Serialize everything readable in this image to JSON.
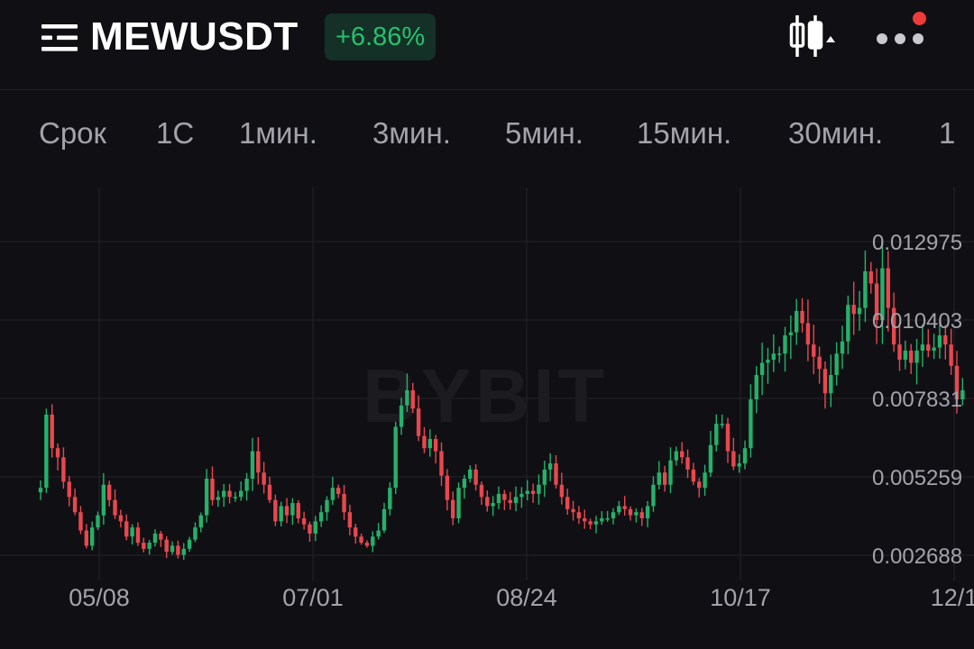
{
  "header": {
    "symbol": "MEWUSDT",
    "change": "+6.86%",
    "change_color": "#25c26e",
    "menu_icon": "menu-list-icon",
    "chart_type_icon": "candlestick-icon",
    "more_icon": "more-dots-icon",
    "has_notification": true
  },
  "tabs": [
    {
      "label": "Срок"
    },
    {
      "label": "1С"
    },
    {
      "label": "1мин."
    },
    {
      "label": "3мин."
    },
    {
      "label": "5мин."
    },
    {
      "label": "15мин."
    },
    {
      "label": "30мин."
    },
    {
      "label": "1"
    }
  ],
  "chart": {
    "watermark": "BYBIT",
    "up_color": "#25b16a",
    "down_color": "#e9474f"
  },
  "chart_data": {
    "type": "candlestick",
    "title": "",
    "xlabel": "",
    "ylabel": "",
    "x_ticks": [
      "05/08",
      "07/01",
      "08/24",
      "10/17",
      "12/1"
    ],
    "y_ticks": [
      "0.012975",
      "0.010403",
      "0.007831",
      "0.005259",
      "0.002688"
    ],
    "ylim": [
      0.002,
      0.0138
    ],
    "grid": true,
    "series": [
      {
        "values": [
          0.0049,
          0.0073,
          0.0062,
          0.0059,
          0.0051,
          0.0046,
          0.0041,
          0.0035,
          0.003,
          0.0036,
          0.004,
          0.005,
          0.0045,
          0.004,
          0.0038,
          0.0033,
          0.0036,
          0.0031,
          0.0029,
          0.0031,
          0.0034,
          0.0032,
          0.0028,
          0.003,
          0.0027,
          0.0029,
          0.0032,
          0.0036,
          0.004,
          0.0052,
          0.0045,
          0.0046,
          0.0048,
          0.0046,
          0.0046,
          0.0048,
          0.0052,
          0.0061,
          0.0054,
          0.005,
          0.0045,
          0.0038,
          0.0043,
          0.004,
          0.0044,
          0.0039,
          0.0037,
          0.0034,
          0.0038,
          0.0041,
          0.0045,
          0.0049,
          0.0047,
          0.0041,
          0.0036,
          0.0033,
          0.0031,
          0.003,
          0.0033,
          0.0035,
          0.0042,
          0.0049,
          0.0069,
          0.0076,
          0.0081,
          0.0075,
          0.0066,
          0.0062,
          0.0065,
          0.0061,
          0.0053,
          0.0045,
          0.0039,
          0.0049,
          0.0052,
          0.0055,
          0.005,
          0.0046,
          0.0043,
          0.0044,
          0.0047,
          0.0045,
          0.0044,
          0.0046,
          0.0047,
          0.0048,
          0.0047,
          0.005,
          0.0055,
          0.0057,
          0.005,
          0.0046,
          0.0042,
          0.0041,
          0.0039,
          0.0038,
          0.0037,
          0.0038,
          0.0039,
          0.0039,
          0.0041,
          0.0043,
          0.0042,
          0.004,
          0.0041,
          0.0039,
          0.0043,
          0.005,
          0.0054,
          0.005,
          0.0058,
          0.0061,
          0.0059,
          0.0055,
          0.0051,
          0.0049,
          0.0054,
          0.0063,
          0.007,
          0.007,
          0.0061,
          0.0056,
          0.0057,
          0.0062,
          0.0078,
          0.0086,
          0.009,
          0.0091,
          0.0093,
          0.0093,
          0.0099,
          0.01,
          0.0107,
          0.0103,
          0.0096,
          0.0092,
          0.0088,
          0.008,
          0.0086,
          0.0093,
          0.0097,
          0.0109,
          0.0106,
          0.0108,
          0.012,
          0.0116,
          0.0104,
          0.0121,
          0.0108,
          0.0096,
          0.0091,
          0.0094,
          0.009,
          0.0094,
          0.0096,
          0.0094,
          0.0095,
          0.0099,
          0.0096,
          0.0089,
          0.0078,
          0.0081
        ]
      }
    ]
  }
}
